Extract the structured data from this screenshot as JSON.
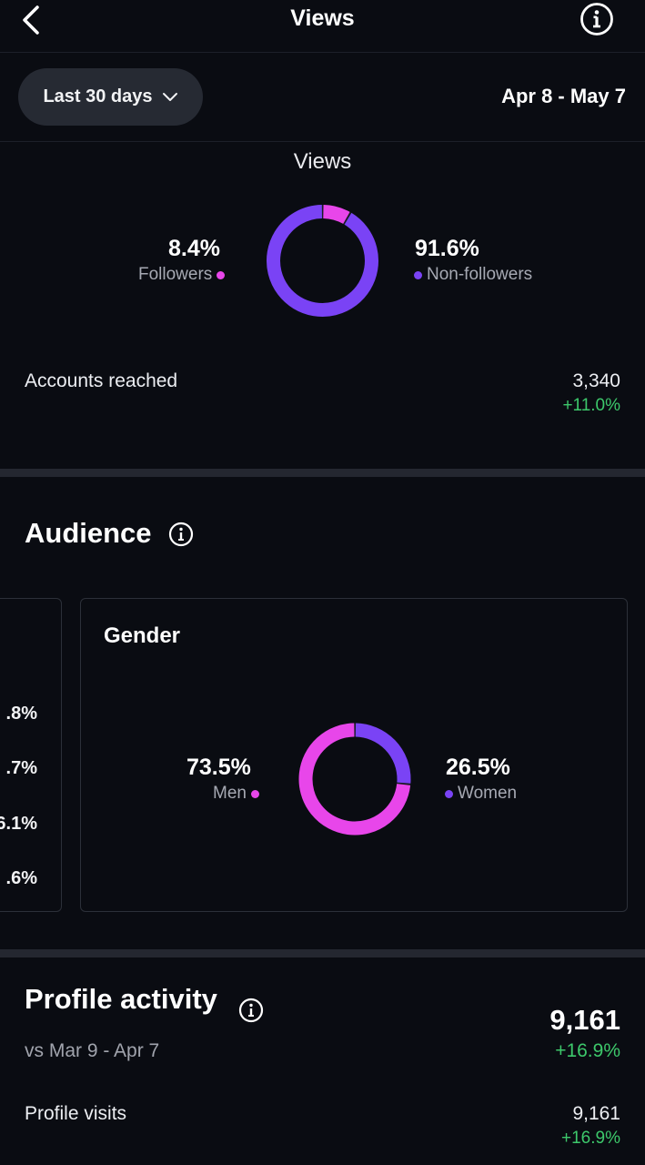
{
  "header": {
    "title": "Views"
  },
  "filter": {
    "range_label": "Last 30 days",
    "date_range": "Apr 8 - May 7"
  },
  "views": {
    "heading": "Views",
    "followers": {
      "percent": "8.4%",
      "label": "Followers",
      "value": 8.4,
      "color": "#e846ea"
    },
    "non_followers": {
      "percent": "91.6%",
      "label": "Non-followers",
      "value": 91.6,
      "color": "#7a43f5"
    }
  },
  "accounts_reached": {
    "label": "Accounts reached",
    "value": "3,340",
    "change": "+11.0%"
  },
  "audience": {
    "heading": "Audience",
    "prev_card_values": [
      ".8%",
      ".7%",
      "6.1%",
      ".6%"
    ],
    "gender": {
      "title": "Gender",
      "men": {
        "percent": "73.5%",
        "label": "Men",
        "value": 73.5,
        "color": "#e846ea"
      },
      "women": {
        "percent": "26.5%",
        "label": "Women",
        "value": 26.5,
        "color": "#7a43f5"
      }
    }
  },
  "profile_activity": {
    "heading": "Profile activity",
    "comparison": "vs Mar 9 - Apr 7",
    "total": "9,161",
    "total_change": "+16.9%",
    "visits": {
      "label": "Profile visits",
      "value": "9,161",
      "change": "+16.9%"
    }
  },
  "colors": {
    "background": "#0a0c12",
    "positive": "#3dc86b",
    "pink": "#e846ea",
    "purple": "#7a43f5"
  }
}
